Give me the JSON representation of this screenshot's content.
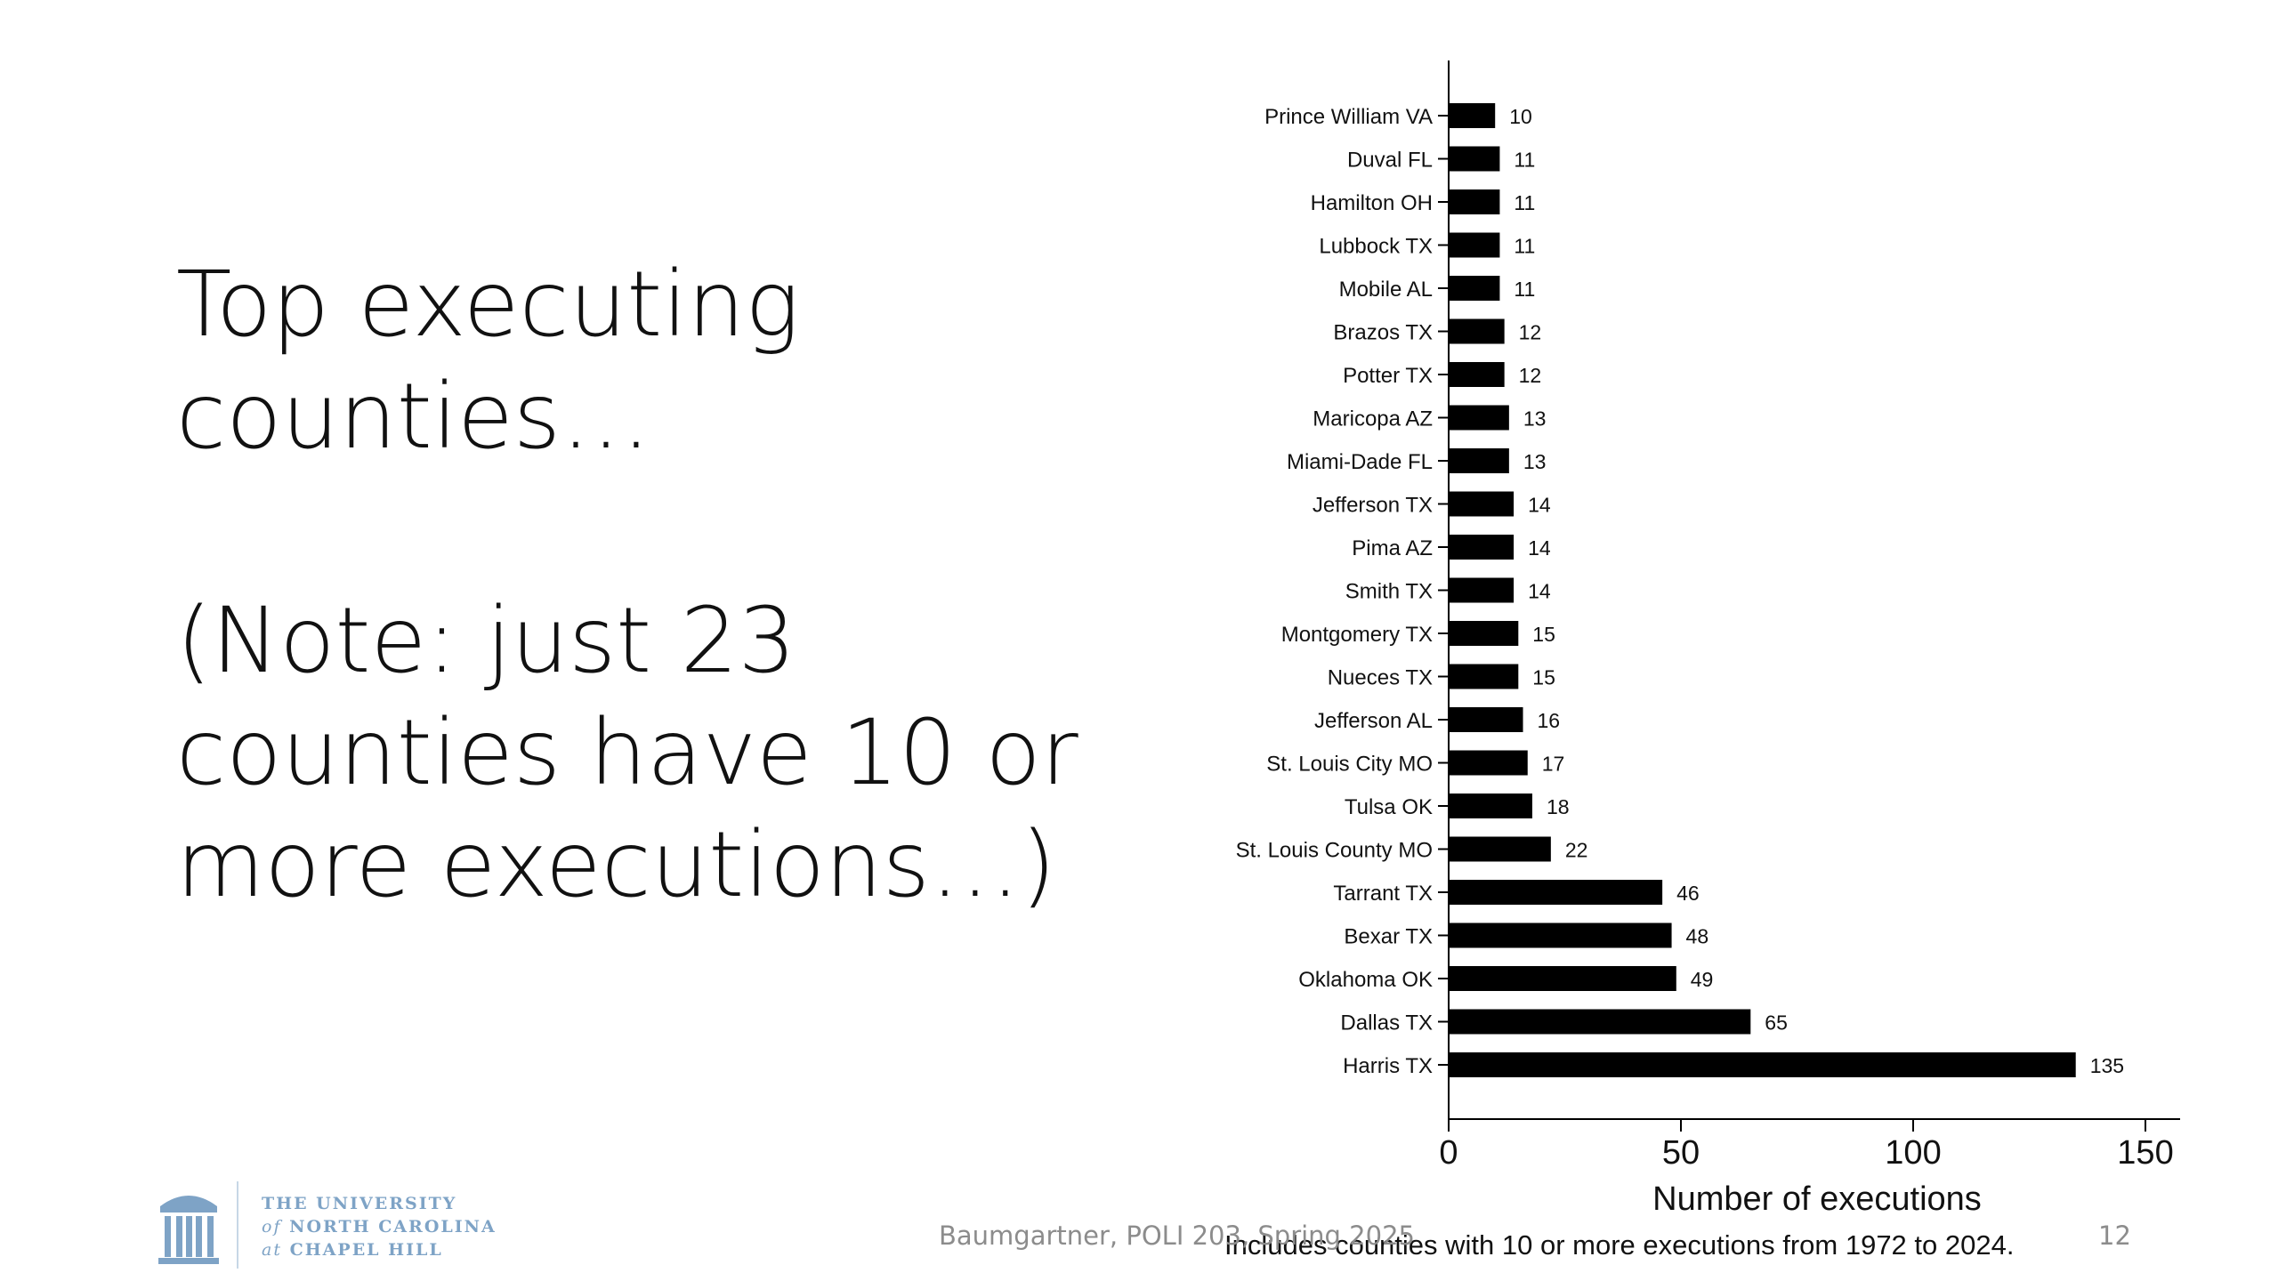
{
  "slide": {
    "title_lines": [
      "Top executing",
      "counties…"
    ],
    "note_lines": [
      "(Note: just 23",
      "counties have 10 or",
      "more executions…)"
    ]
  },
  "footer": {
    "citation": "Baumgartner, POLI 203, Spring 2025",
    "page_number": "12"
  },
  "logo": {
    "line1": "THE UNIVERSITY",
    "line2_prefix": "of",
    "line2": "NORTH CAROLINA",
    "line3_prefix": "at",
    "line3": "CHAPEL HILL",
    "color": "#7ea3c6"
  },
  "chart_data": {
    "type": "bar",
    "orientation": "horizontal",
    "categories": [
      "Prince William VA",
      "Duval FL",
      "Hamilton OH",
      "Lubbock TX",
      "Mobile AL",
      "Brazos TX",
      "Potter TX",
      "Maricopa AZ",
      "Miami-Dade FL",
      "Jefferson TX",
      "Pima AZ",
      "Smith TX",
      "Montgomery TX",
      "Nueces TX",
      "Jefferson AL",
      "St. Louis City MO",
      "Tulsa OK",
      "St. Louis County MO",
      "Tarrant TX",
      "Bexar TX",
      "Oklahoma OK",
      "Dallas TX",
      "Harris TX"
    ],
    "values": [
      10,
      11,
      11,
      11,
      11,
      12,
      12,
      13,
      13,
      14,
      14,
      14,
      15,
      15,
      16,
      17,
      18,
      22,
      46,
      48,
      49,
      65,
      135
    ],
    "data_labels": [
      "10",
      "11",
      "11",
      "11",
      "11",
      "12",
      "12",
      "13",
      "13",
      "14",
      "14",
      "14",
      "15",
      "15",
      "16",
      "17",
      "18",
      "22",
      "46",
      "48",
      "49",
      "65",
      "135"
    ],
    "xlabel": "Number of executions",
    "caption": "Includes counties with 10 or more executions from 1972 to 2024.",
    "xlim": [
      0,
      157
    ],
    "xticks": [
      0,
      50,
      100,
      150
    ],
    "xtick_labels": [
      "0",
      "50",
      "100",
      "150"
    ],
    "bar_color": "#000000",
    "grid": false,
    "legend": "none"
  }
}
